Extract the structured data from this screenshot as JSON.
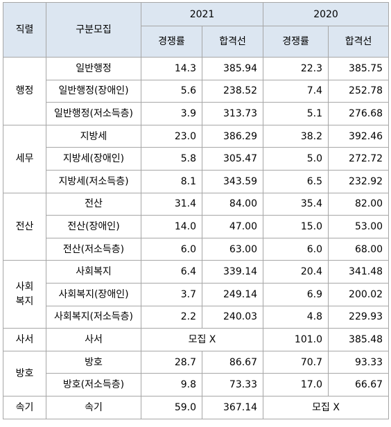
{
  "headers": {
    "position": "직렬",
    "category": "구분모집",
    "year_a": "2021",
    "year_b": "2020",
    "rate": "경쟁률",
    "cutoff": "합격선"
  },
  "groups": [
    {
      "name": "행정",
      "rows": [
        {
          "item": "일반행정",
          "a_rate": "14.3",
          "a_cut": "385.94",
          "b_rate": "22.3",
          "b_cut": "385.75"
        },
        {
          "item": "일반행정(장애인)",
          "a_rate": "5.6",
          "a_cut": "238.52",
          "b_rate": "7.4",
          "b_cut": "252.78"
        },
        {
          "item": "일반행정(저소득층)",
          "a_rate": "3.9",
          "a_cut": "313.73",
          "b_rate": "5.1",
          "b_cut": "276.68"
        }
      ]
    },
    {
      "name": "세무",
      "rows": [
        {
          "item": "지방세",
          "a_rate": "23.0",
          "a_cut": "386.29",
          "b_rate": "38.2",
          "b_cut": "392.46"
        },
        {
          "item": "지방세(장애인)",
          "a_rate": "5.8",
          "a_cut": "305.47",
          "b_rate": "5.0",
          "b_cut": "272.72"
        },
        {
          "item": "지방세(저소득층)",
          "a_rate": "8.1",
          "a_cut": "343.59",
          "b_rate": "6.5",
          "b_cut": "232.92"
        }
      ]
    },
    {
      "name": "전산",
      "rows": [
        {
          "item": "전산",
          "a_rate": "31.4",
          "a_cut": "84.00",
          "b_rate": "35.4",
          "b_cut": "82.00"
        },
        {
          "item": "전산(장애인)",
          "a_rate": "14.0",
          "a_cut": "47.00",
          "b_rate": "15.0",
          "b_cut": "53.00"
        },
        {
          "item": "전산(저소득층)",
          "a_rate": "6.0",
          "a_cut": "63.00",
          "b_rate": "6.0",
          "b_cut": "68.00"
        }
      ]
    },
    {
      "name_lines": [
        "사회",
        "복지"
      ],
      "rows": [
        {
          "item": "사회복지",
          "a_rate": "6.4",
          "a_cut": "339.14",
          "b_rate": "20.4",
          "b_cut": "341.48"
        },
        {
          "item": "사회복지(장애인)",
          "a_rate": "3.7",
          "a_cut": "249.14",
          "b_rate": "6.9",
          "b_cut": "200.02"
        },
        {
          "item": "사회복지(저소득층)",
          "a_rate": "2.2",
          "a_cut": "240.03",
          "b_rate": "4.8",
          "b_cut": "229.93"
        }
      ]
    },
    {
      "name": "사서",
      "rows": [
        {
          "item": "사서",
          "a_merged": "모집 X",
          "b_rate": "101.0",
          "b_cut": "385.48"
        }
      ]
    },
    {
      "name": "방호",
      "rows": [
        {
          "item": "방호",
          "a_rate": "28.7",
          "a_cut": "86.67",
          "b_rate": "70.7",
          "b_cut": "93.33"
        },
        {
          "item": "방호(저소득층)",
          "a_rate": "9.8",
          "a_cut": "73.33",
          "b_rate": "17.0",
          "b_cut": "66.67"
        }
      ]
    },
    {
      "name": "속기",
      "rows": [
        {
          "item": "속기",
          "a_rate": "59.0",
          "a_cut": "367.14",
          "b_merged": "모집 X"
        }
      ]
    }
  ]
}
